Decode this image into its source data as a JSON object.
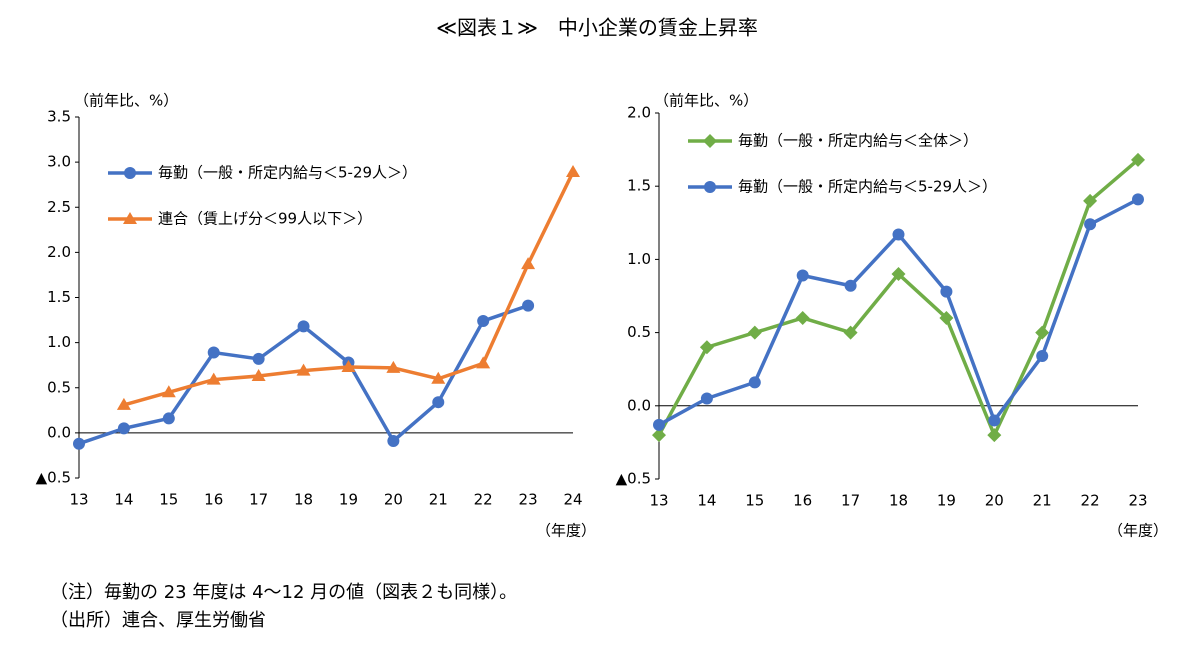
{
  "title": "≪図表１≫　中小企業の賃金上昇率",
  "chart_data": [
    {
      "type": "line",
      "y_label": "（前年比、%）",
      "x_label": "（年度）",
      "categories": [
        "13",
        "14",
        "15",
        "16",
        "17",
        "18",
        "19",
        "20",
        "21",
        "22",
        "23",
        "24"
      ],
      "series": [
        {
          "name": "毎勤（一般・所定内給与＜5-29人＞）",
          "color": "#4472c4",
          "marker": "circle",
          "values": [
            -0.12,
            0.05,
            0.16,
            0.89,
            0.82,
            1.18,
            0.78,
            -0.09,
            0.34,
            1.24,
            1.41,
            null
          ]
        },
        {
          "name": "連合（賃上げ分＜99人以下＞）",
          "color": "#ed7d31",
          "marker": "triangle",
          "values": [
            null,
            0.31,
            0.45,
            0.59,
            0.63,
            0.69,
            0.73,
            0.72,
            0.6,
            0.77,
            1.87,
            2.89
          ]
        }
      ],
      "ylim": [
        -0.5,
        3.5
      ],
      "yticks": [
        {
          "value": -0.5,
          "label": "▲0.5"
        },
        {
          "value": 0,
          "label": "0.0"
        },
        0.5,
        {
          "value": 1,
          "label": "1.0"
        },
        1.5,
        {
          "value": 2,
          "label": "2.0"
        },
        2.5,
        {
          "value": 3,
          "label": "3.0"
        },
        3.5
      ],
      "legend": "upper left"
    },
    {
      "type": "line",
      "y_label": "（前年比、%）",
      "x_label": "（年度）",
      "categories": [
        "13",
        "14",
        "15",
        "16",
        "17",
        "18",
        "19",
        "20",
        "21",
        "22",
        "23"
      ],
      "series": [
        {
          "name": "毎勤（一般・所定内給与＜全体＞）",
          "color": "#70ad47",
          "marker": "diamond",
          "values": [
            -0.2,
            0.4,
            0.5,
            0.6,
            0.5,
            0.9,
            0.6,
            -0.2,
            0.5,
            1.4,
            1.68
          ]
        },
        {
          "name": "毎勤（一般・所定内給与＜5-29人＞）",
          "color": "#4472c4",
          "marker": "circle",
          "values": [
            -0.13,
            0.05,
            0.16,
            0.89,
            0.82,
            1.17,
            0.78,
            -0.1,
            0.34,
            1.24,
            1.41
          ]
        }
      ],
      "ylim": [
        -0.5,
        2.0
      ],
      "yticks": [
        {
          "value": -0.5,
          "label": "▲0.5"
        },
        {
          "value": 0,
          "label": "0.0"
        },
        0.5,
        {
          "value": 1,
          "label": "1.0"
        },
        1.5,
        {
          "value": 2,
          "label": "2.0"
        }
      ],
      "legend": "upper left"
    }
  ],
  "notes": [
    "（注）毎勤の 23 年度は 4～12 月の値（図表２も同様）。",
    "（出所）連合、厚生労働省"
  ]
}
